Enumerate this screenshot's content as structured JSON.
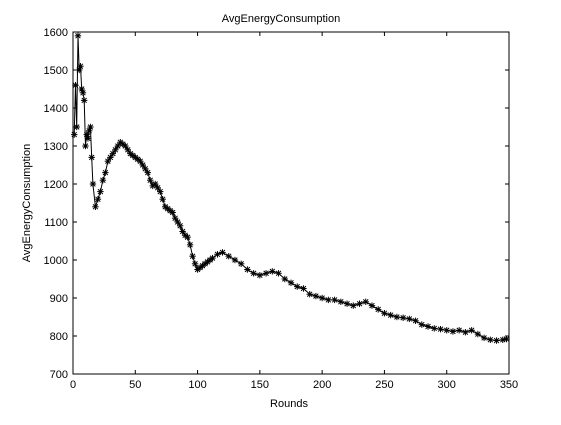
{
  "window": {
    "background": "#ffffff"
  },
  "chart_data": {
    "type": "line",
    "title": "AvgEnergyConsumption",
    "xlabel": "Rounds",
    "ylabel": "AvgEnergyConsumption",
    "xlim": [
      0,
      350
    ],
    "ylim": [
      700,
      1600
    ],
    "xticks": [
      0,
      50,
      100,
      150,
      200,
      250,
      300,
      350
    ],
    "yticks": [
      700,
      800,
      900,
      1000,
      1100,
      1200,
      1300,
      1400,
      1500,
      1600
    ],
    "grid": false,
    "legend": "none",
    "series": [
      {
        "color": "#000000",
        "marker": "asterisk",
        "x": [
          1,
          2,
          3,
          4,
          5,
          6,
          7,
          8,
          9,
          10,
          11,
          12,
          13,
          14,
          15,
          16,
          18,
          20,
          22,
          24,
          26,
          28,
          30,
          32,
          34,
          36,
          38,
          40,
          42,
          44,
          46,
          48,
          50,
          52,
          54,
          56,
          58,
          60,
          62,
          64,
          66,
          68,
          70,
          72,
          74,
          76,
          78,
          80,
          82,
          84,
          86,
          88,
          90,
          92,
          94,
          96,
          98,
          100,
          102,
          104,
          106,
          108,
          110,
          112,
          116,
          120,
          125,
          130,
          135,
          140,
          145,
          150,
          155,
          160,
          165,
          170,
          175,
          180,
          185,
          190,
          195,
          200,
          205,
          210,
          215,
          220,
          225,
          230,
          235,
          240,
          245,
          250,
          255,
          260,
          265,
          270,
          275,
          280,
          285,
          290,
          295,
          300,
          305,
          310,
          315,
          320,
          325,
          330,
          335,
          340,
          345,
          348
        ],
        "y": [
          1330,
          1460,
          1350,
          1590,
          1500,
          1510,
          1450,
          1440,
          1420,
          1300,
          1330,
          1320,
          1340,
          1350,
          1270,
          1200,
          1140,
          1160,
          1180,
          1210,
          1230,
          1260,
          1270,
          1280,
          1290,
          1300,
          1310,
          1305,
          1300,
          1290,
          1280,
          1275,
          1270,
          1265,
          1260,
          1250,
          1240,
          1230,
          1210,
          1195,
          1200,
          1190,
          1180,
          1160,
          1140,
          1135,
          1130,
          1125,
          1110,
          1100,
          1090,
          1075,
          1065,
          1060,
          1040,
          1010,
          990,
          975,
          980,
          985,
          990,
          995,
          1000,
          1005,
          1015,
          1020,
          1010,
          1000,
          990,
          975,
          965,
          960,
          965,
          970,
          965,
          950,
          940,
          930,
          925,
          910,
          905,
          900,
          895,
          895,
          890,
          885,
          880,
          885,
          890,
          880,
          870,
          860,
          855,
          850,
          848,
          845,
          840,
          830,
          825,
          820,
          818,
          815,
          812,
          815,
          810,
          815,
          805,
          795,
          790,
          788,
          790,
          792
        ]
      }
    ]
  }
}
